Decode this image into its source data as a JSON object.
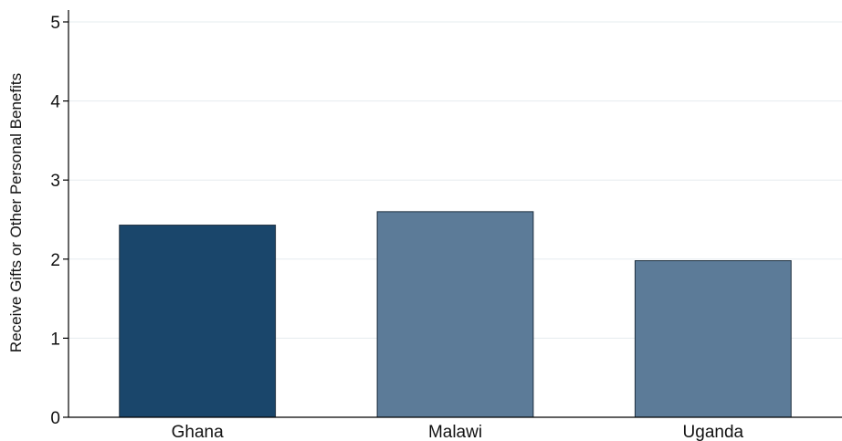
{
  "chart_data": {
    "type": "bar",
    "title": "",
    "xlabel": "",
    "ylabel": "Receive Gifts or Other Personal Benefits",
    "categories": [
      "Ghana",
      "Malawi",
      "Uganda"
    ],
    "values": [
      2.43,
      2.6,
      1.98
    ],
    "ylim": [
      0,
      5
    ],
    "yticks": [
      "0",
      "1",
      "2",
      "3",
      "4",
      "5"
    ],
    "grid": true,
    "legend": "none",
    "colors": [
      "#1a466b",
      "#5c7b98",
      "#5c7b98"
    ]
  }
}
